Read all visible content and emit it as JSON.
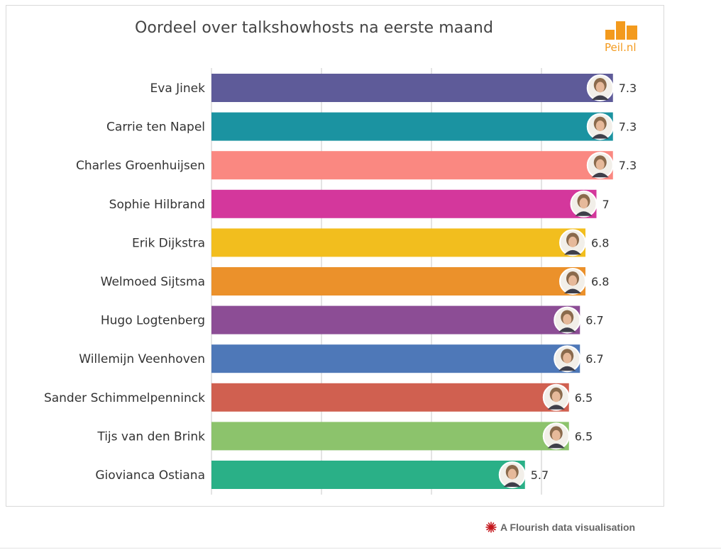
{
  "title": "Oordeel over talkshowhosts na eerste maand",
  "logo": {
    "text": "Peil.nl",
    "color": "#f39a1d"
  },
  "credit": {
    "text": "A Flourish data visualisation",
    "icon": "flourish-burst-icon",
    "icon_color": "#c4161c"
  },
  "chart_data": {
    "type": "bar",
    "orientation": "horizontal",
    "title": "Oordeel over talkshowhosts na eerste maand",
    "xlim": [
      0,
      7.3
    ],
    "grid": true,
    "categories": [
      "Eva Jinek",
      "Carrie ten Napel",
      "Charles Groenhuijsen",
      "Sophie Hilbrand",
      "Erik Dijkstra",
      "Welmoed Sijtsma",
      "Hugo Logtenberg",
      "Willemijn Veenhoven",
      "Sander Schimmelpenninck",
      "Tijs van den Brink",
      "Giovianca Ostiana"
    ],
    "values": [
      7.3,
      7.3,
      7.3,
      7,
      6.8,
      6.8,
      6.7,
      6.7,
      6.5,
      6.5,
      5.7
    ],
    "value_labels": [
      "7.3",
      "7.3",
      "7.3",
      "7",
      "6.8",
      "6.8",
      "6.7",
      "6.7",
      "6.5",
      "6.5",
      "5.7"
    ],
    "colors": [
      "#5e5b99",
      "#1b93a1",
      "#fa8881",
      "#d4379c",
      "#f2be1e",
      "#eb912b",
      "#8c4d95",
      "#4e78b8",
      "#d06050",
      "#8cc36c",
      "#2ab087"
    ],
    "avatar_icons": [
      "avatar-icon",
      "avatar-icon",
      "avatar-icon",
      "avatar-icon",
      "avatar-icon",
      "avatar-icon",
      "avatar-icon",
      "avatar-icon",
      "avatar-icon",
      "avatar-icon",
      "avatar-icon"
    ]
  }
}
